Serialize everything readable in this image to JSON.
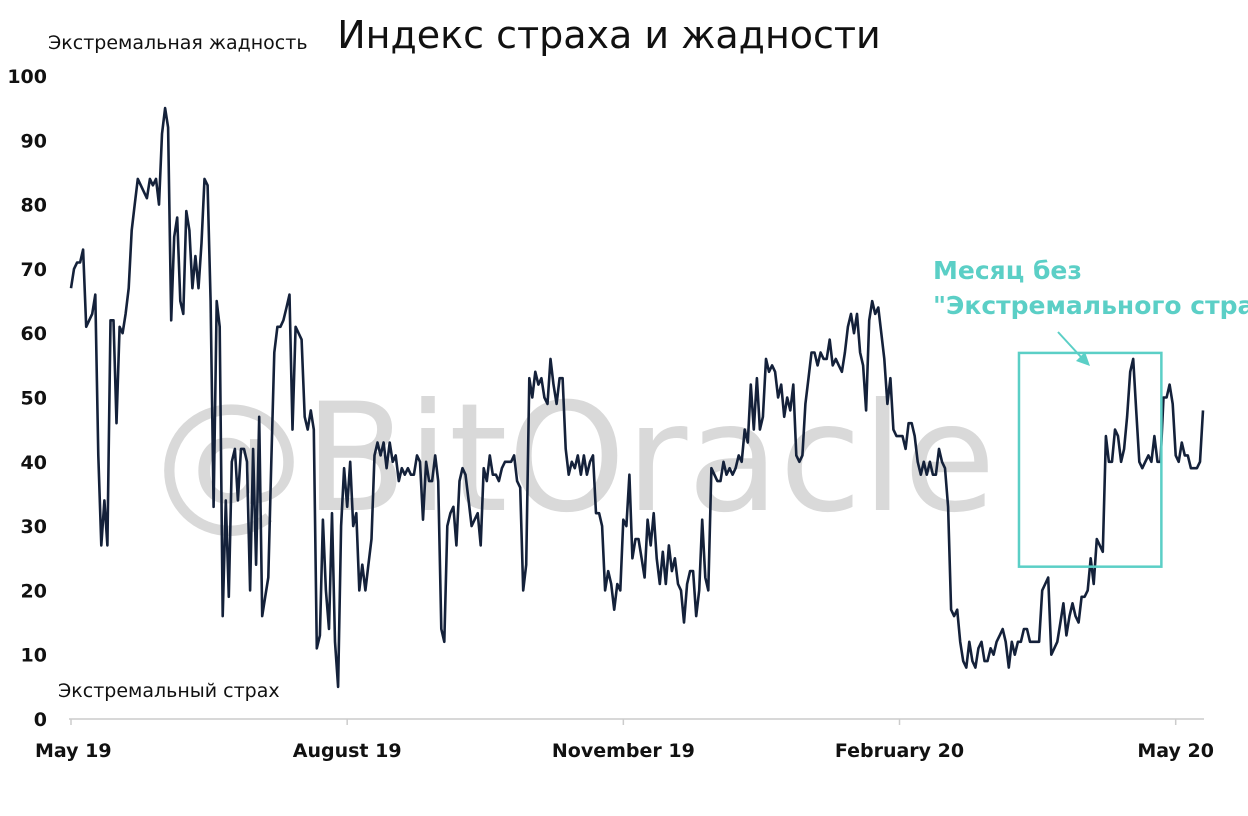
{
  "watermark": "@BitOracle",
  "annotation": {
    "line1": "Месяц без",
    "line2": "\"Экстремального страха\"",
    "color": "#5bcfc6"
  },
  "colors": {
    "line": "#14213a",
    "axis": "#cccccc",
    "text": "#111111"
  },
  "chart_data": {
    "type": "line",
    "title": "Индекс страха и жадности",
    "label_top": "Экстремальная жадность",
    "label_bottom": "Экстремальный страх",
    "ylim": [
      0,
      100
    ],
    "yticks": [
      0,
      10,
      20,
      30,
      40,
      50,
      60,
      70,
      80,
      90,
      100
    ],
    "xticks": [
      "May 19",
      "August 19",
      "November 19",
      "February 20",
      "May 20"
    ],
    "grid": false,
    "highlight": {
      "x_range": [
        315,
        355
      ],
      "y_range": [
        24,
        56
      ]
    },
    "series": [
      {
        "values": [
          67,
          70,
          71,
          71,
          73,
          61,
          62,
          63,
          66,
          41,
          27,
          34,
          27,
          62,
          62,
          46,
          61,
          60,
          63,
          67,
          76,
          80,
          84,
          83,
          82,
          81,
          84,
          83,
          84,
          80,
          91,
          95,
          92,
          62,
          75,
          78,
          65,
          63,
          79,
          76,
          67,
          72,
          67,
          74,
          84,
          83,
          65,
          33,
          65,
          61,
          16,
          34,
          19,
          40,
          42,
          34,
          42,
          42,
          40,
          20,
          42,
          24,
          47,
          16,
          19,
          22,
          40,
          57,
          61,
          61,
          62,
          64,
          66,
          45,
          61,
          60,
          59,
          47,
          45,
          48,
          45,
          11,
          13,
          31,
          20,
          14,
          32,
          12,
          5,
          30,
          39,
          33,
          40,
          30,
          32,
          20,
          24,
          20,
          24,
          28,
          41,
          43,
          41,
          43,
          39,
          43,
          40,
          41,
          37,
          39,
          38,
          39,
          38,
          38,
          41,
          40,
          31,
          40,
          37,
          37,
          41,
          37,
          14,
          12,
          30,
          32,
          33,
          27,
          37,
          39,
          38,
          34,
          30,
          31,
          32,
          27,
          39,
          37,
          41,
          38,
          38,
          37,
          39,
          40,
          40,
          40,
          41,
          37,
          36,
          20,
          24,
          53,
          50,
          54,
          52,
          53,
          50,
          49,
          56,
          52,
          49,
          53,
          53,
          42,
          38,
          40,
          39,
          41,
          38,
          41,
          38,
          40,
          41,
          32,
          32,
          30,
          20,
          23,
          21,
          17,
          21,
          20,
          31,
          30,
          38,
          25,
          28,
          28,
          25,
          22,
          31,
          27,
          32,
          25,
          21,
          26,
          21,
          27,
          23,
          25,
          21,
          20,
          15,
          21,
          23,
          23,
          16,
          20,
          31,
          22,
          20,
          39,
          38,
          37,
          37,
          40,
          38,
          39,
          38,
          39,
          41,
          40,
          45,
          43,
          52,
          45,
          53,
          45,
          47,
          56,
          54,
          55,
          54,
          50,
          52,
          47,
          50,
          48,
          52,
          41,
          40,
          41,
          49,
          53,
          57,
          57,
          55,
          57,
          56,
          56,
          59,
          55,
          56,
          55,
          54,
          57,
          61,
          63,
          60,
          63,
          57,
          55,
          48,
          62,
          65,
          63,
          64,
          60,
          56,
          49,
          53,
          45,
          44,
          44,
          44,
          42,
          46,
          46,
          44,
          40,
          38,
          40,
          38,
          40,
          38,
          38,
          42,
          40,
          39,
          33,
          17,
          16,
          17,
          12,
          9,
          8,
          12,
          9,
          8,
          11,
          12,
          9,
          9,
          11,
          10,
          12,
          13,
          14,
          12,
          8,
          12,
          10,
          12,
          12,
          14,
          14,
          12,
          12,
          12,
          12,
          20,
          21,
          22,
          10,
          11,
          12,
          15,
          18,
          13,
          16,
          18,
          16,
          15,
          19,
          19,
          20,
          25,
          21,
          28,
          27,
          26,
          44,
          40,
          40,
          45,
          44,
          40,
          42,
          47,
          54,
          56,
          48,
          40,
          39,
          40,
          41,
          40,
          44,
          40,
          40,
          50,
          50,
          52,
          49,
          41,
          40,
          43,
          41,
          41,
          39,
          39,
          39,
          40,
          48
        ],
        "x_ticks_index": [
          0,
          91,
          182,
          273,
          364
        ]
      }
    ]
  }
}
